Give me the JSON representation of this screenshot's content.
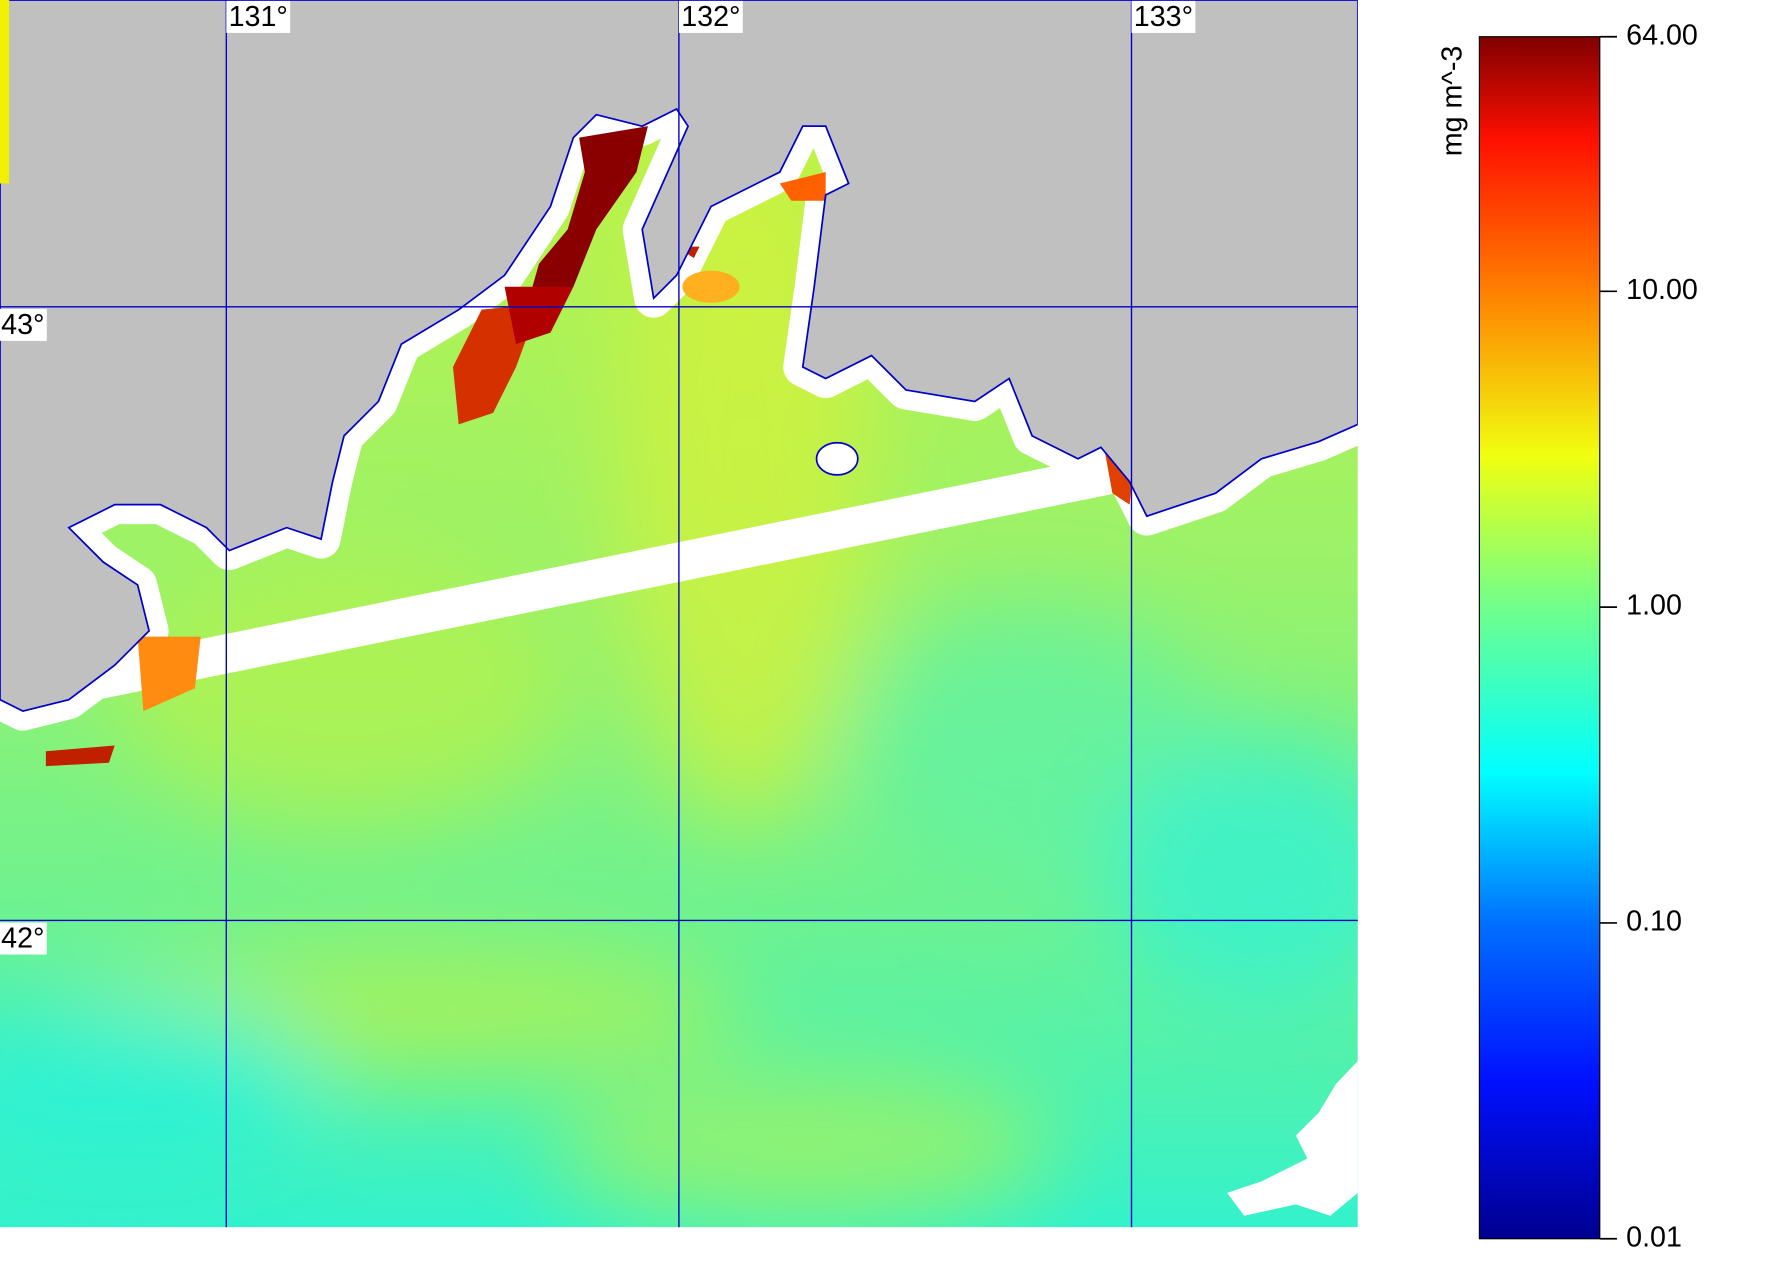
{
  "map": {
    "lon_range": [
      130.5,
      133.5
    ],
    "lat_range": [
      41.5,
      43.5
    ],
    "lon_lines": [
      {
        "value": 131,
        "label": "131°"
      },
      {
        "value": 132,
        "label": "132°"
      },
      {
        "value": 133,
        "label": "133°"
      }
    ],
    "lat_lines": [
      {
        "value": 43,
        "label": "43°"
      },
      {
        "value": 42,
        "label": "42°"
      }
    ]
  },
  "colorbar": {
    "label": "mg m^-3",
    "range": [
      0.01,
      64
    ],
    "log": true,
    "ticks": [
      {
        "value": 64,
        "label": "64.00"
      },
      {
        "value": 10,
        "label": "10.00"
      },
      {
        "value": 1,
        "label": "1.00"
      },
      {
        "value": 0.1,
        "label": "0.10"
      },
      {
        "value": 0.01,
        "label": "0.01"
      }
    ]
  }
}
